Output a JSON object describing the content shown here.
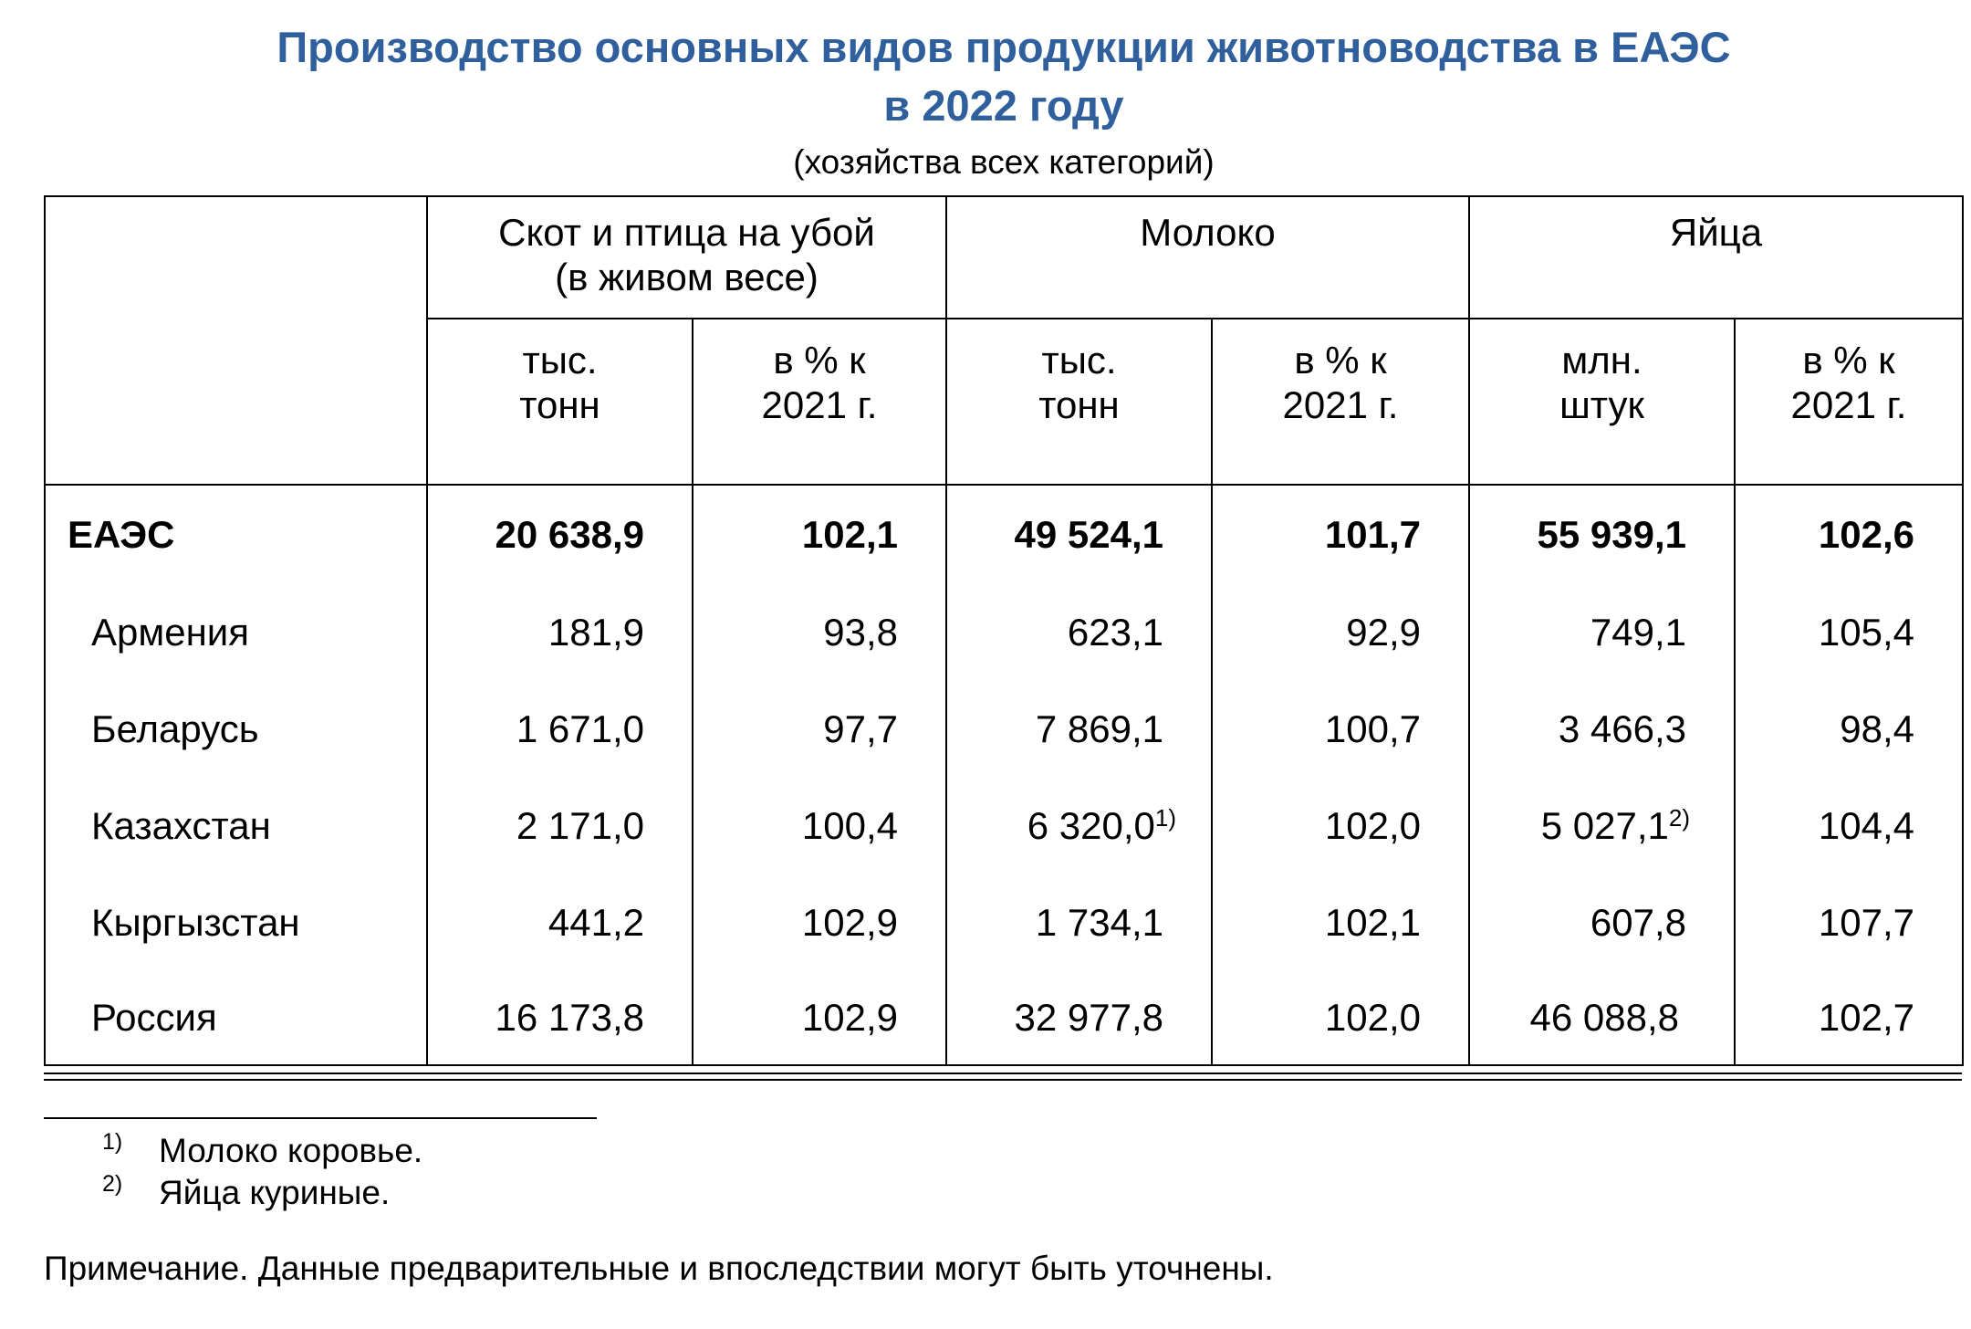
{
  "title": {
    "line1": "Производство основных видов продукции животноводства в ЕАЭС",
    "line2": "в 2022 году",
    "subtitle": "(хозяйства всех категорий)"
  },
  "table": {
    "groups": [
      {
        "line1": "Скот и птица на убой",
        "line2": "(в живом весе)"
      },
      {
        "line1": "Молоко",
        "line2": ""
      },
      {
        "line1": "Яйца",
        "line2": ""
      }
    ],
    "subheaders": [
      {
        "line1": "тыс.",
        "line2": "тонн"
      },
      {
        "line1": "в % к",
        "line2": "2021 г."
      },
      {
        "line1": "тыс.",
        "line2": "тонн"
      },
      {
        "line1": "в % к",
        "line2": "2021 г."
      },
      {
        "line1": "млн.",
        "line2": "штук"
      },
      {
        "line1": "в % к",
        "line2": "2021 г."
      }
    ],
    "rows": [
      {
        "name": "ЕАЭС",
        "c1": "20 638,9",
        "c2": "102,1",
        "c3": "49 524,1",
        "c4": "101,7",
        "c5": "55 939,1",
        "c6": "102,6"
      },
      {
        "name": "Армения",
        "c1": "181,9",
        "c2": "93,8",
        "c3": "623,1",
        "c4": "92,9",
        "c5": "749,1",
        "c6": "105,4"
      },
      {
        "name": "Беларусь",
        "c1": "1 671,0",
        "c2": "97,7",
        "c3": "7 869,1",
        "c4": "100,7",
        "c5": "3 466,3",
        "c6": "98,4"
      },
      {
        "name": "Казахстан",
        "c1": "2 171,0",
        "c2": "100,4",
        "c3": "6 320,0",
        "c3_fn": "1)",
        "c4": "102,0",
        "c5": "5 027,1",
        "c5_fn": "2)",
        "c6": "104,4"
      },
      {
        "name": "Кыргызстан",
        "c1": "441,2",
        "c2": "102,9",
        "c3": "1 734,1",
        "c4": "102,1",
        "c5": "607,8",
        "c6": "107,7"
      },
      {
        "name": "Россия",
        "c1": "16 173,8",
        "c2": "102,9",
        "c3": "32 977,8",
        "c4": "102,0",
        "c5": "46 088,8",
        "c6": "102,7"
      }
    ]
  },
  "footnotes": [
    {
      "mark": "1)",
      "text": "Молоко коровье."
    },
    {
      "mark": "2)",
      "text": "Яйца куриные."
    }
  ],
  "note": "Примечание. Данные предварительные и впоследствии могут быть уточнены."
}
